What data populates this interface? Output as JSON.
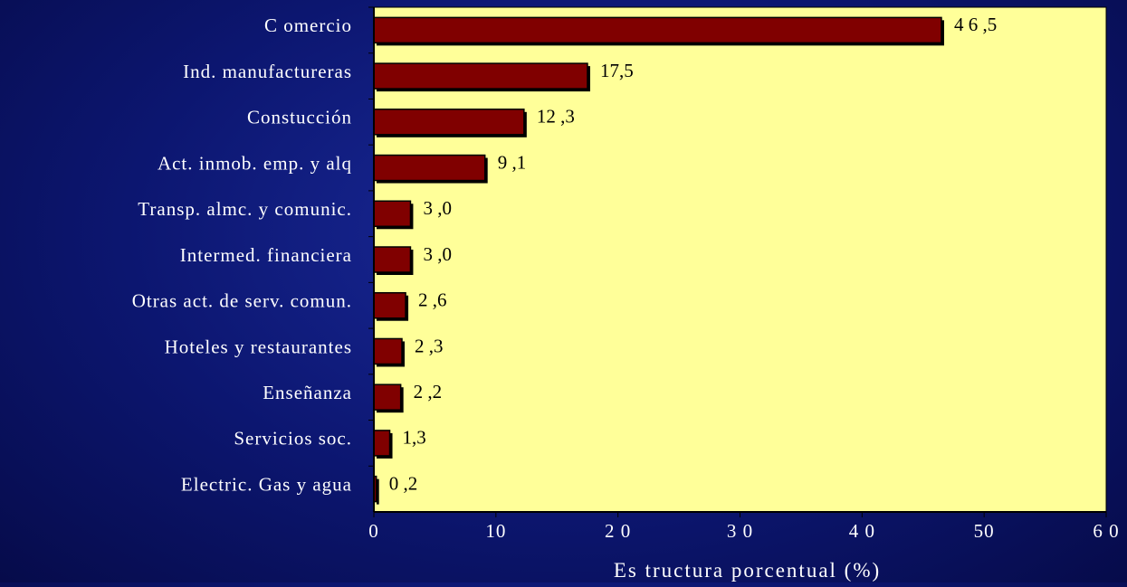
{
  "colors": {
    "plot_background": "#ffff99",
    "bar_fill": "#800000",
    "bar_stroke": "#000000",
    "text": "#ffffff",
    "value_label": "#000000"
  },
  "chart_data": {
    "type": "bar",
    "orientation": "horizontal",
    "categories": [
      "C omercio",
      "Ind. manufactureras",
      "Constucción",
      "Act. inmob. emp. y alq",
      "Transp. almc. y comunic.",
      "Intermed. financiera",
      "Otras act. de serv. comun.",
      "Hoteles y restaurantes",
      "Enseñanza",
      "Servicios soc.",
      "Electric. Gas y agua"
    ],
    "values": [
      46.5,
      17.5,
      12.3,
      9.1,
      3.0,
      3.0,
      2.6,
      2.3,
      2.2,
      1.3,
      0.2
    ],
    "value_labels": [
      "4 6 ,5",
      "17,5",
      "12 ,3",
      "9 ,1",
      "3 ,0",
      "3 ,0",
      "2 ,6",
      "2 ,3",
      "2 ,2",
      "1,3",
      "0 ,2"
    ],
    "xlabel": "Es tructura porcentual (%)",
    "ylabel": "",
    "xlim": [
      0,
      60
    ],
    "xticks": [
      0,
      10,
      20,
      30,
      40,
      50,
      60
    ],
    "xtick_labels": [
      "0",
      "10",
      "2 0",
      "3 0",
      "4 0",
      "50",
      "6 0"
    ],
    "grid": false,
    "legend": "none"
  }
}
